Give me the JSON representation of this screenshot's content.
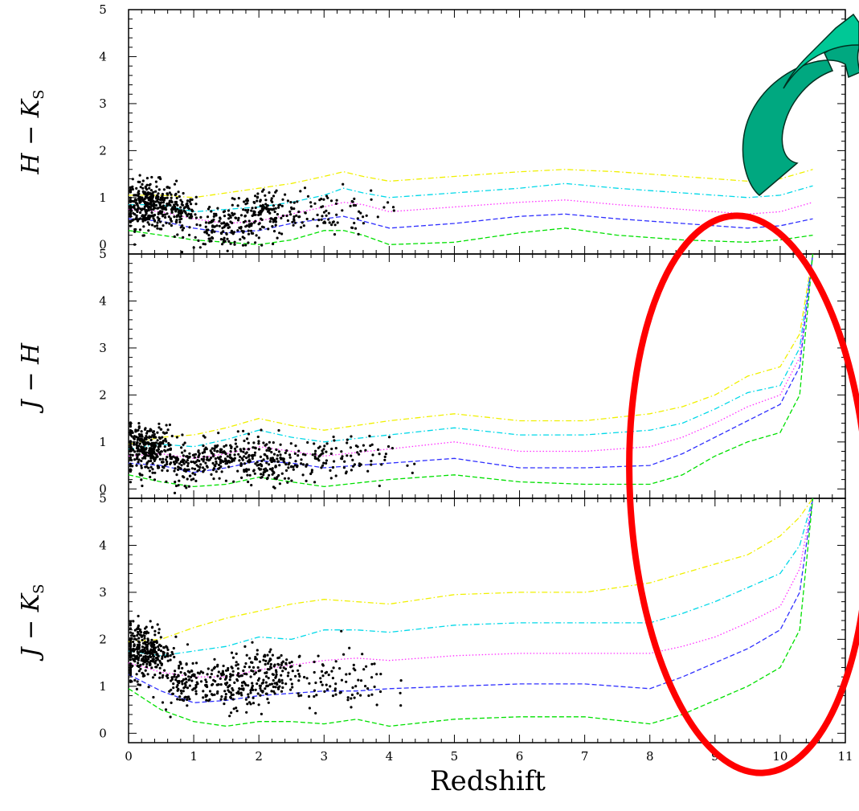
{
  "chart_data": {
    "type": "scatter",
    "xlabel": "Redshift",
    "xlim": [
      0,
      11
    ],
    "x_ticks": [
      "0",
      "1",
      "2",
      "3",
      "4",
      "5",
      "6",
      "7",
      "8",
      "9",
      "10",
      "11"
    ],
    "y_ticks": [
      "0",
      "1",
      "2",
      "3",
      "4",
      "5"
    ],
    "grid": false,
    "panels": [
      {
        "ylabel": "H − K",
        "ylabel_sub": "S",
        "ylim": [
          -0.2,
          5
        ],
        "series": [
          {
            "color": "#f0f000",
            "style": "dashdot",
            "x": [
              0,
              0.5,
              1.0,
              1.5,
              2.0,
              2.5,
              3.0,
              3.3,
              3.6,
              4.0,
              5.0,
              6.0,
              6.7,
              7.5,
              8.5,
              9.5,
              10.0,
              10.5
            ],
            "y": [
              1.05,
              1.05,
              1.0,
              1.1,
              1.2,
              1.3,
              1.45,
              1.55,
              1.45,
              1.35,
              1.45,
              1.55,
              1.6,
              1.55,
              1.45,
              1.35,
              1.4,
              1.6
            ]
          },
          {
            "color": "#00d8e8",
            "style": "dashdot",
            "x": [
              0,
              0.5,
              1.0,
              1.5,
              2.0,
              2.5,
              3.0,
              3.3,
              3.6,
              4.0,
              5.0,
              6.0,
              6.7,
              7.5,
              8.5,
              9.5,
              10.0,
              10.5
            ],
            "y": [
              0.85,
              0.85,
              0.7,
              0.75,
              0.8,
              0.9,
              1.05,
              1.2,
              1.1,
              1.0,
              1.1,
              1.2,
              1.3,
              1.2,
              1.1,
              1.0,
              1.05,
              1.25
            ]
          },
          {
            "color": "#ff30ff",
            "style": "dotted",
            "x": [
              0,
              0.5,
              1.0,
              1.5,
              2.0,
              2.5,
              3.0,
              3.3,
              3.6,
              4.0,
              5.0,
              6.0,
              6.7,
              7.5,
              8.5,
              9.5,
              10.0,
              10.5
            ],
            "y": [
              0.75,
              0.7,
              0.55,
              0.45,
              0.5,
              0.65,
              0.8,
              0.9,
              0.85,
              0.7,
              0.8,
              0.9,
              0.95,
              0.85,
              0.75,
              0.65,
              0.7,
              0.9
            ]
          },
          {
            "color": "#3030ff",
            "style": "dashed",
            "x": [
              0,
              0.5,
              1.0,
              1.5,
              2.0,
              2.5,
              3.0,
              3.3,
              3.6,
              4.0,
              5.0,
              6.0,
              6.7,
              7.5,
              8.5,
              9.5,
              10.0,
              10.5
            ],
            "y": [
              0.55,
              0.5,
              0.35,
              0.25,
              0.3,
              0.45,
              0.55,
              0.6,
              0.5,
              0.35,
              0.45,
              0.6,
              0.65,
              0.55,
              0.45,
              0.35,
              0.4,
              0.55
            ]
          },
          {
            "color": "#00e000",
            "style": "dashed",
            "x": [
              0,
              0.5,
              1.0,
              1.5,
              2.0,
              2.5,
              3.0,
              3.3,
              3.6,
              4.0,
              5.0,
              6.0,
              6.7,
              7.5,
              8.5,
              9.5,
              10.0,
              10.5
            ],
            "y": [
              0.3,
              0.2,
              0.1,
              0.05,
              0.0,
              0.1,
              0.3,
              0.3,
              0.2,
              0.0,
              0.05,
              0.25,
              0.35,
              0.2,
              0.1,
              0.05,
              0.1,
              0.2
            ]
          }
        ]
      },
      {
        "ylabel": "J − H",
        "ylabel_sub": "",
        "ylim": [
          -0.2,
          5
        ],
        "series": [
          {
            "color": "#f0f000",
            "style": "dashdot",
            "x": [
              0,
              0.5,
              1.0,
              1.5,
              2.0,
              2.5,
              3.0,
              4.0,
              5.0,
              6.0,
              7.0,
              8.0,
              8.5,
              9.0,
              9.5,
              10.0,
              10.3,
              10.5
            ],
            "y": [
              0.95,
              1.1,
              1.15,
              1.3,
              1.5,
              1.35,
              1.25,
              1.45,
              1.6,
              1.45,
              1.45,
              1.6,
              1.75,
              2.0,
              2.4,
              2.6,
              3.3,
              5.0
            ]
          },
          {
            "color": "#00d8e8",
            "style": "dashdot",
            "x": [
              0,
              0.5,
              1.0,
              1.5,
              2.0,
              2.5,
              3.0,
              4.0,
              5.0,
              6.0,
              7.0,
              8.0,
              8.5,
              9.0,
              9.5,
              10.0,
              10.3,
              10.5
            ],
            "y": [
              0.85,
              0.95,
              0.9,
              1.05,
              1.25,
              1.1,
              1.0,
              1.15,
              1.3,
              1.15,
              1.15,
              1.25,
              1.4,
              1.7,
              2.05,
              2.2,
              3.0,
              5.0
            ]
          },
          {
            "color": "#ff30ff",
            "style": "dotted",
            "x": [
              0,
              0.5,
              1.0,
              1.5,
              2.0,
              2.5,
              3.0,
              4.0,
              5.0,
              6.0,
              7.0,
              8.0,
              8.5,
              9.0,
              9.5,
              10.0,
              10.3,
              10.5
            ],
            "y": [
              0.7,
              0.75,
              0.65,
              0.75,
              0.9,
              0.8,
              0.7,
              0.85,
              1.0,
              0.8,
              0.8,
              0.9,
              1.1,
              1.4,
              1.75,
              2.0,
              2.8,
              5.0
            ]
          },
          {
            "color": "#3030ff",
            "style": "dashed",
            "x": [
              0,
              0.5,
              1.0,
              1.5,
              2.0,
              2.5,
              3.0,
              4.0,
              5.0,
              6.0,
              7.0,
              8.0,
              8.5,
              9.0,
              9.5,
              10.0,
              10.3,
              10.5
            ],
            "y": [
              0.55,
              0.5,
              0.35,
              0.45,
              0.6,
              0.55,
              0.45,
              0.55,
              0.65,
              0.45,
              0.45,
              0.5,
              0.75,
              1.1,
              1.45,
              1.8,
              2.6,
              5.0
            ]
          },
          {
            "color": "#00e000",
            "style": "dashed",
            "x": [
              0,
              0.5,
              1.0,
              1.5,
              2.0,
              2.5,
              3.0,
              4.0,
              5.0,
              6.0,
              7.0,
              8.0,
              8.5,
              9.0,
              9.5,
              10.0,
              10.3,
              10.5
            ],
            "y": [
              0.3,
              0.15,
              0.05,
              0.1,
              0.25,
              0.15,
              0.05,
              0.2,
              0.3,
              0.15,
              0.1,
              0.1,
              0.3,
              0.7,
              1.0,
              1.2,
              2.0,
              5.0
            ]
          }
        ]
      },
      {
        "ylabel": "J − K",
        "ylabel_sub": "S",
        "ylim": [
          -0.2,
          5
        ],
        "series": [
          {
            "color": "#f0f000",
            "style": "dashdot",
            "x": [
              0,
              0.5,
              1.0,
              1.5,
              2.0,
              2.5,
              3.0,
              3.5,
              4.0,
              5.0,
              6.0,
              7.0,
              8.0,
              8.5,
              9.0,
              9.5,
              10.0,
              10.3,
              10.5
            ],
            "y": [
              1.95,
              2.0,
              2.25,
              2.45,
              2.6,
              2.75,
              2.85,
              2.8,
              2.75,
              2.95,
              3.0,
              3.0,
              3.2,
              3.4,
              3.6,
              3.8,
              4.2,
              4.6,
              5.0
            ]
          },
          {
            "color": "#00d8e8",
            "style": "dashdot",
            "x": [
              0,
              0.5,
              1.0,
              1.5,
              2.0,
              2.5,
              3.0,
              3.5,
              4.0,
              5.0,
              6.0,
              7.0,
              8.0,
              8.5,
              9.0,
              9.5,
              10.0,
              10.3,
              10.5
            ],
            "y": [
              1.75,
              1.65,
              1.75,
              1.85,
              2.05,
              2.0,
              2.2,
              2.2,
              2.15,
              2.3,
              2.35,
              2.35,
              2.35,
              2.55,
              2.8,
              3.1,
              3.4,
              4.0,
              5.0
            ]
          },
          {
            "color": "#ff30ff",
            "style": "dotted",
            "x": [
              0,
              0.5,
              1.0,
              1.5,
              2.0,
              2.5,
              3.0,
              3.5,
              4.0,
              5.0,
              6.0,
              7.0,
              8.0,
              8.5,
              9.0,
              9.5,
              10.0,
              10.3,
              10.5
            ],
            "y": [
              1.5,
              1.3,
              1.2,
              1.2,
              1.35,
              1.45,
              1.55,
              1.6,
              1.55,
              1.65,
              1.7,
              1.7,
              1.7,
              1.85,
              2.05,
              2.35,
              2.7,
              3.5,
              5.0
            ]
          },
          {
            "color": "#3030ff",
            "style": "dashed",
            "x": [
              0,
              0.5,
              1.0,
              1.5,
              2.0,
              2.5,
              3.0,
              3.5,
              4.0,
              5.0,
              6.0,
              7.0,
              8.0,
              8.5,
              9.0,
              9.5,
              10.0,
              10.3,
              10.5
            ],
            "y": [
              1.25,
              0.9,
              0.65,
              0.7,
              0.8,
              0.85,
              0.9,
              0.9,
              0.95,
              1.0,
              1.05,
              1.05,
              0.95,
              1.2,
              1.5,
              1.8,
              2.2,
              3.0,
              5.0
            ]
          },
          {
            "color": "#00e000",
            "style": "dashed",
            "x": [
              0,
              0.5,
              1.0,
              1.5,
              2.0,
              2.5,
              3.0,
              3.5,
              4.0,
              5.0,
              6.0,
              7.0,
              8.0,
              8.5,
              9.0,
              9.5,
              10.0,
              10.3,
              10.5
            ],
            "y": [
              0.95,
              0.5,
              0.25,
              0.15,
              0.25,
              0.25,
              0.2,
              0.3,
              0.15,
              0.3,
              0.35,
              0.35,
              0.2,
              0.4,
              0.7,
              1.0,
              1.4,
              2.2,
              5.0
            ]
          }
        ]
      }
    ],
    "scatter_clusters": [
      [
        {
          "xc": 0.3,
          "yc": 0.85,
          "sx": 0.2,
          "sy": 0.25,
          "n": 320
        },
        {
          "xc": 0.8,
          "yc": 0.7,
          "sx": 0.15,
          "sy": 0.2,
          "n": 90
        },
        {
          "xc": 1.5,
          "yc": 0.35,
          "sx": 0.3,
          "sy": 0.2,
          "n": 150
        },
        {
          "xc": 2.1,
          "yc": 0.7,
          "sx": 0.3,
          "sy": 0.25,
          "n": 130
        },
        {
          "xc": 3.0,
          "yc": 0.7,
          "sx": 0.45,
          "sy": 0.25,
          "n": 80
        }
      ],
      [
        {
          "xc": 0.3,
          "yc": 0.85,
          "sx": 0.2,
          "sy": 0.25,
          "n": 320
        },
        {
          "xc": 0.9,
          "yc": 0.5,
          "sx": 0.15,
          "sy": 0.2,
          "n": 90
        },
        {
          "xc": 1.5,
          "yc": 0.65,
          "sx": 0.3,
          "sy": 0.2,
          "n": 150
        },
        {
          "xc": 2.2,
          "yc": 0.6,
          "sx": 0.35,
          "sy": 0.25,
          "n": 150
        },
        {
          "xc": 3.1,
          "yc": 0.6,
          "sx": 0.45,
          "sy": 0.25,
          "n": 90
        }
      ],
      [
        {
          "xc": 0.25,
          "yc": 1.75,
          "sx": 0.2,
          "sy": 0.3,
          "n": 320
        },
        {
          "xc": 0.8,
          "yc": 1.1,
          "sx": 0.15,
          "sy": 0.25,
          "n": 90
        },
        {
          "xc": 1.5,
          "yc": 1.0,
          "sx": 0.3,
          "sy": 0.25,
          "n": 150
        },
        {
          "xc": 2.1,
          "yc": 1.3,
          "sx": 0.3,
          "sy": 0.3,
          "n": 140
        },
        {
          "xc": 3.1,
          "yc": 1.1,
          "sx": 0.45,
          "sy": 0.3,
          "n": 90
        }
      ]
    ],
    "annotations": [
      {
        "kind": "curved-arrow",
        "color": "#00c896"
      },
      {
        "kind": "ellipse",
        "color": "#ff0000"
      }
    ]
  }
}
